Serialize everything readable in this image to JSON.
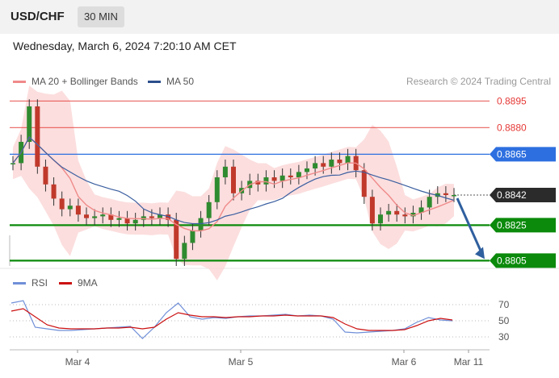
{
  "header": {
    "pair": "USD/CHF",
    "timeframe": "30 MIN",
    "datetime": "Wednesday, March 6, 2024 7:20:10 AM CET"
  },
  "legend": {
    "ma20": "MA 20 + Bollinger Bands",
    "ma50": "MA 50",
    "credit": "Research © 2024 Trading Central"
  },
  "rsi_legend": {
    "rsi": "RSI",
    "ma9": "9MA"
  },
  "colors": {
    "resistance": "#e53935",
    "pivot": "#2d6fe0",
    "support": "#0b8a0b",
    "current": "#2b2b2b",
    "ma20": "#f08a8a",
    "ma50": "#3b5fa0",
    "bands": "#fbd3d3",
    "up": "#2f8b2f",
    "down": "#c0392b",
    "arrow": "#2f5f9e",
    "rsi": "#6f8fd8",
    "rsi_ma": "#cc1111"
  },
  "chart_data": [
    {
      "type": "candlestick",
      "title": "",
      "instrument": "USD/CHF",
      "timeframe": "30 MIN",
      "x_ticks": [
        "Mar 4",
        "Mar 5",
        "Mar 6",
        "Mar 11"
      ],
      "ylim": [
        0.8802,
        0.8902
      ],
      "levels": [
        {
          "value": "0.8895",
          "kind": "resistance"
        },
        {
          "value": "0.8880",
          "kind": "resistance"
        },
        {
          "value": "0.8865",
          "kind": "pivot"
        },
        {
          "value": "0.8842",
          "kind": "current"
        },
        {
          "value": "0.8825",
          "kind": "support"
        },
        {
          "value": "0.8805",
          "kind": "support"
        }
      ],
      "series": [
        {
          "name": "MA 20 + Bollinger Bands"
        },
        {
          "name": "MA 50"
        }
      ],
      "forecast": {
        "from": 0.8842,
        "to": 0.8805,
        "direction": "down"
      },
      "price_path": [
        0.886,
        0.8872,
        0.8892,
        0.8858,
        0.8848,
        0.884,
        0.8834,
        0.8836,
        0.8831,
        0.8829,
        0.883,
        0.8831,
        0.8828,
        0.8829,
        0.8826,
        0.8828,
        0.883,
        0.8829,
        0.8831,
        0.8828,
        0.8806,
        0.8815,
        0.8822,
        0.8829,
        0.8838,
        0.8852,
        0.8858,
        0.8843,
        0.8846,
        0.885,
        0.8848,
        0.8852,
        0.885,
        0.8853,
        0.8852,
        0.8855,
        0.8857,
        0.886,
        0.8858,
        0.8862,
        0.886,
        0.8864,
        0.8856,
        0.8841,
        0.8826,
        0.8831,
        0.8833,
        0.8831,
        0.883,
        0.8832,
        0.8835,
        0.8841,
        0.8843,
        0.8842,
        0.8842
      ]
    },
    {
      "type": "line",
      "title": "",
      "yticks": [
        70,
        50,
        30
      ],
      "ylim": [
        20,
        80
      ],
      "series": [
        {
          "name": "RSI",
          "values": [
            72,
            75,
            42,
            40,
            38,
            38,
            39,
            40,
            41,
            42,
            43,
            28,
            42,
            60,
            72,
            55,
            52,
            54,
            53,
            55,
            56,
            56,
            57,
            58,
            56,
            57,
            56,
            52,
            36,
            35,
            36,
            37,
            38,
            40,
            48,
            54,
            51,
            50
          ]
        },
        {
          "name": "9MA",
          "values": [
            62,
            65,
            55,
            45,
            41,
            40,
            40,
            40,
            41,
            41,
            42,
            40,
            42,
            52,
            60,
            57,
            55,
            55,
            54,
            55,
            55,
            56,
            56,
            57,
            56,
            56,
            56,
            54,
            46,
            40,
            38,
            38,
            38,
            39,
            44,
            50,
            53,
            51
          ]
        }
      ]
    }
  ]
}
